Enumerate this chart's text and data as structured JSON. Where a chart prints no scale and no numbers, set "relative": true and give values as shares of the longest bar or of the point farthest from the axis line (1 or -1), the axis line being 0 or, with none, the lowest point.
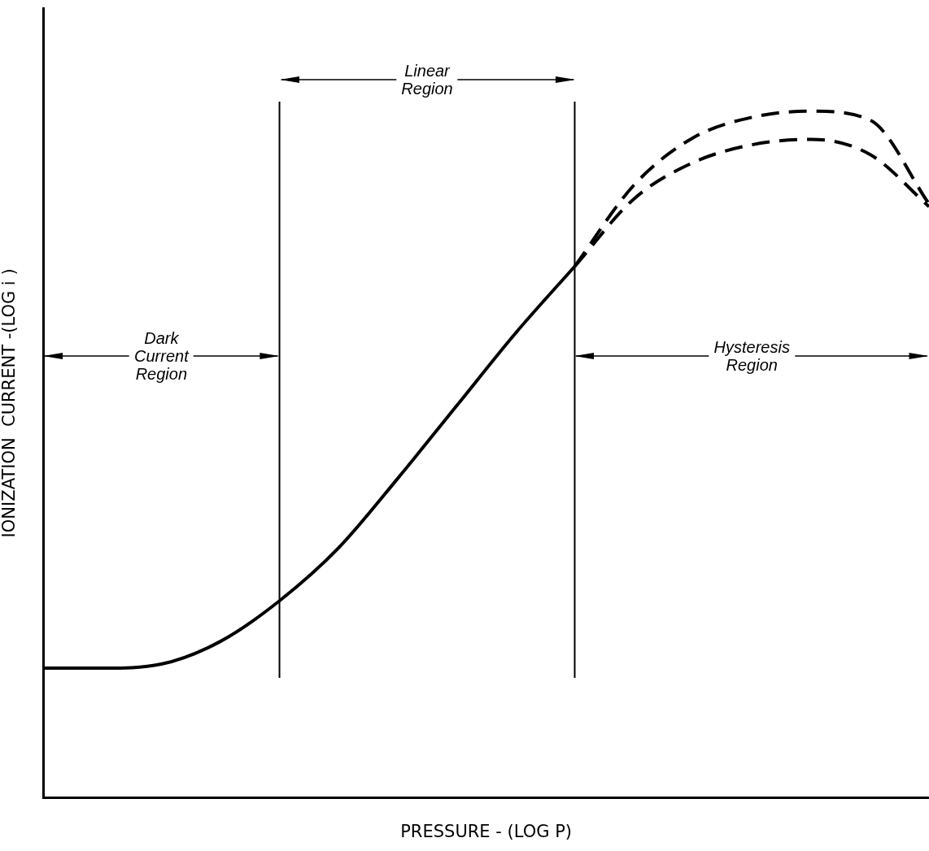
{
  "chart_data": {
    "type": "line",
    "relative": true,
    "xlabel": "PRESSURE - (LOG P)",
    "ylabel": "IONIZATION  CURRENT -(LOG i )",
    "categories": [
      null,
      null,
      null,
      null,
      null,
      null,
      null,
      null,
      null,
      null,
      null,
      null,
      null,
      null,
      null,
      null
    ],
    "series": [
      {
        "color": "#000000",
        "line_style": "solid",
        "values": [
          0.189,
          0.189,
          0.195,
          0.228,
          0.287,
          0.364,
          0.465,
          0.571,
          0.677,
          0.774,
          null,
          null,
          null,
          null,
          null,
          null
        ]
      },
      {
        "color": "#000000",
        "line_style": "dashed",
        "values": [
          null,
          null,
          null,
          null,
          null,
          null,
          null,
          null,
          null,
          0.774,
          0.892,
          0.961,
          0.991,
          1.0,
          0.987,
          0.865
        ]
      },
      {
        "color": "#000000",
        "line_style": "dashed",
        "values": [
          null,
          null,
          null,
          null,
          null,
          null,
          null,
          null,
          null,
          0.774,
          0.872,
          0.925,
          0.951,
          0.959,
          0.937,
          0.861
        ]
      }
    ],
    "annotations": [
      "Dark Current Region",
      "Linear Region",
      "Hysteresis Region"
    ],
    "grid": false,
    "legend": false,
    "marker": "none"
  }
}
